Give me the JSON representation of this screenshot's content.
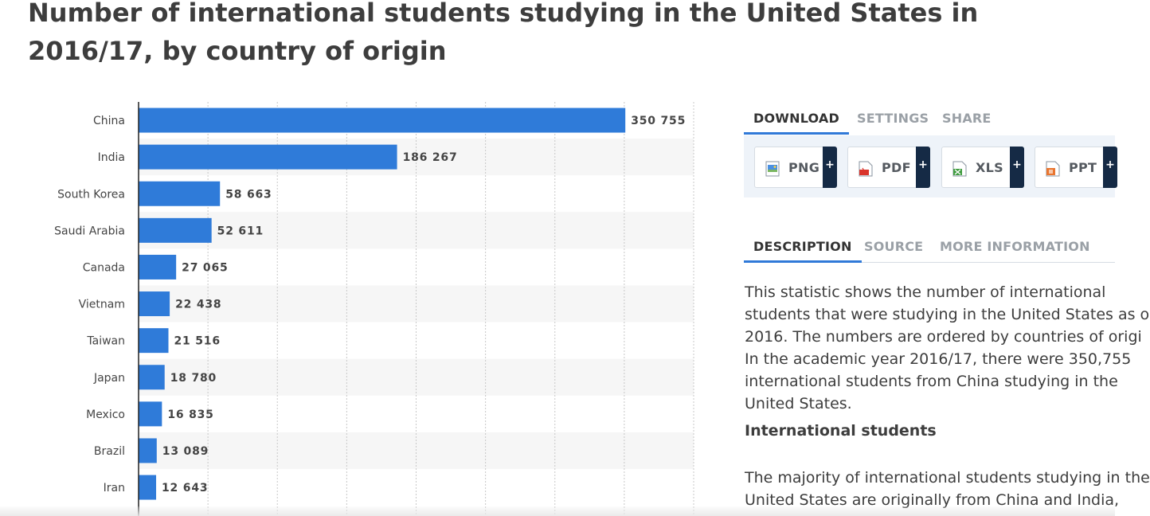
{
  "page": {
    "title": "Number of international students studying in the United States in 2016/17, by country of origin"
  },
  "chart_data": {
    "type": "bar",
    "orientation": "horizontal",
    "categories": [
      "China",
      "India",
      "South Korea",
      "Saudi Arabia",
      "Canada",
      "Vietnam",
      "Taiwan",
      "Japan",
      "Mexico",
      "Brazil",
      "Iran"
    ],
    "values": [
      350755,
      186267,
      58663,
      52611,
      27065,
      22438,
      21516,
      18780,
      16835,
      13089,
      12643
    ],
    "value_labels": [
      "350 755",
      "186 267",
      "58 663",
      "52 611",
      "27 065",
      "22 438",
      "21 516",
      "18 780",
      "16 835",
      "13 089",
      "12 643"
    ],
    "title": "",
    "xlabel": "",
    "ylabel": "",
    "xlim": [
      0,
      400000
    ],
    "grid": true,
    "bar_color": "#2f7bd9",
    "row_stripe_color": "#f6f6f6"
  },
  "download_tabs": {
    "items": [
      {
        "label": "DOWNLOAD",
        "active": true
      },
      {
        "label": "SETTINGS",
        "active": false
      },
      {
        "label": "SHARE",
        "active": false
      }
    ]
  },
  "download_buttons": {
    "items": [
      {
        "label": "PNG",
        "icon": "png-file-icon",
        "plus": "+"
      },
      {
        "label": "PDF",
        "icon": "pdf-file-icon",
        "plus": "+"
      },
      {
        "label": "XLS",
        "icon": "xls-file-icon",
        "plus": "+"
      },
      {
        "label": "PPT",
        "icon": "ppt-file-icon",
        "plus": "+"
      }
    ]
  },
  "info_tabs": {
    "items": [
      {
        "label": "DESCRIPTION",
        "active": true
      },
      {
        "label": "SOURCE",
        "active": false
      },
      {
        "label": "MORE INFORMATION",
        "active": false
      }
    ]
  },
  "description": {
    "lines": [
      "This statistic shows the number of international",
      "students that were studying in the United States as o",
      "2016. The numbers are ordered by countries of origi",
      "In the academic year 2016/17, there were 350,755",
      "international students from China studying in the",
      "United States."
    ],
    "section_title": "International students",
    "lines2": [
      "The majority of international students studying in the",
      "United States are originally from China and India,"
    ]
  },
  "colors": {
    "accent": "#3079d8",
    "plus_bg": "#152a45",
    "panel_bg": "#eef3f9"
  }
}
